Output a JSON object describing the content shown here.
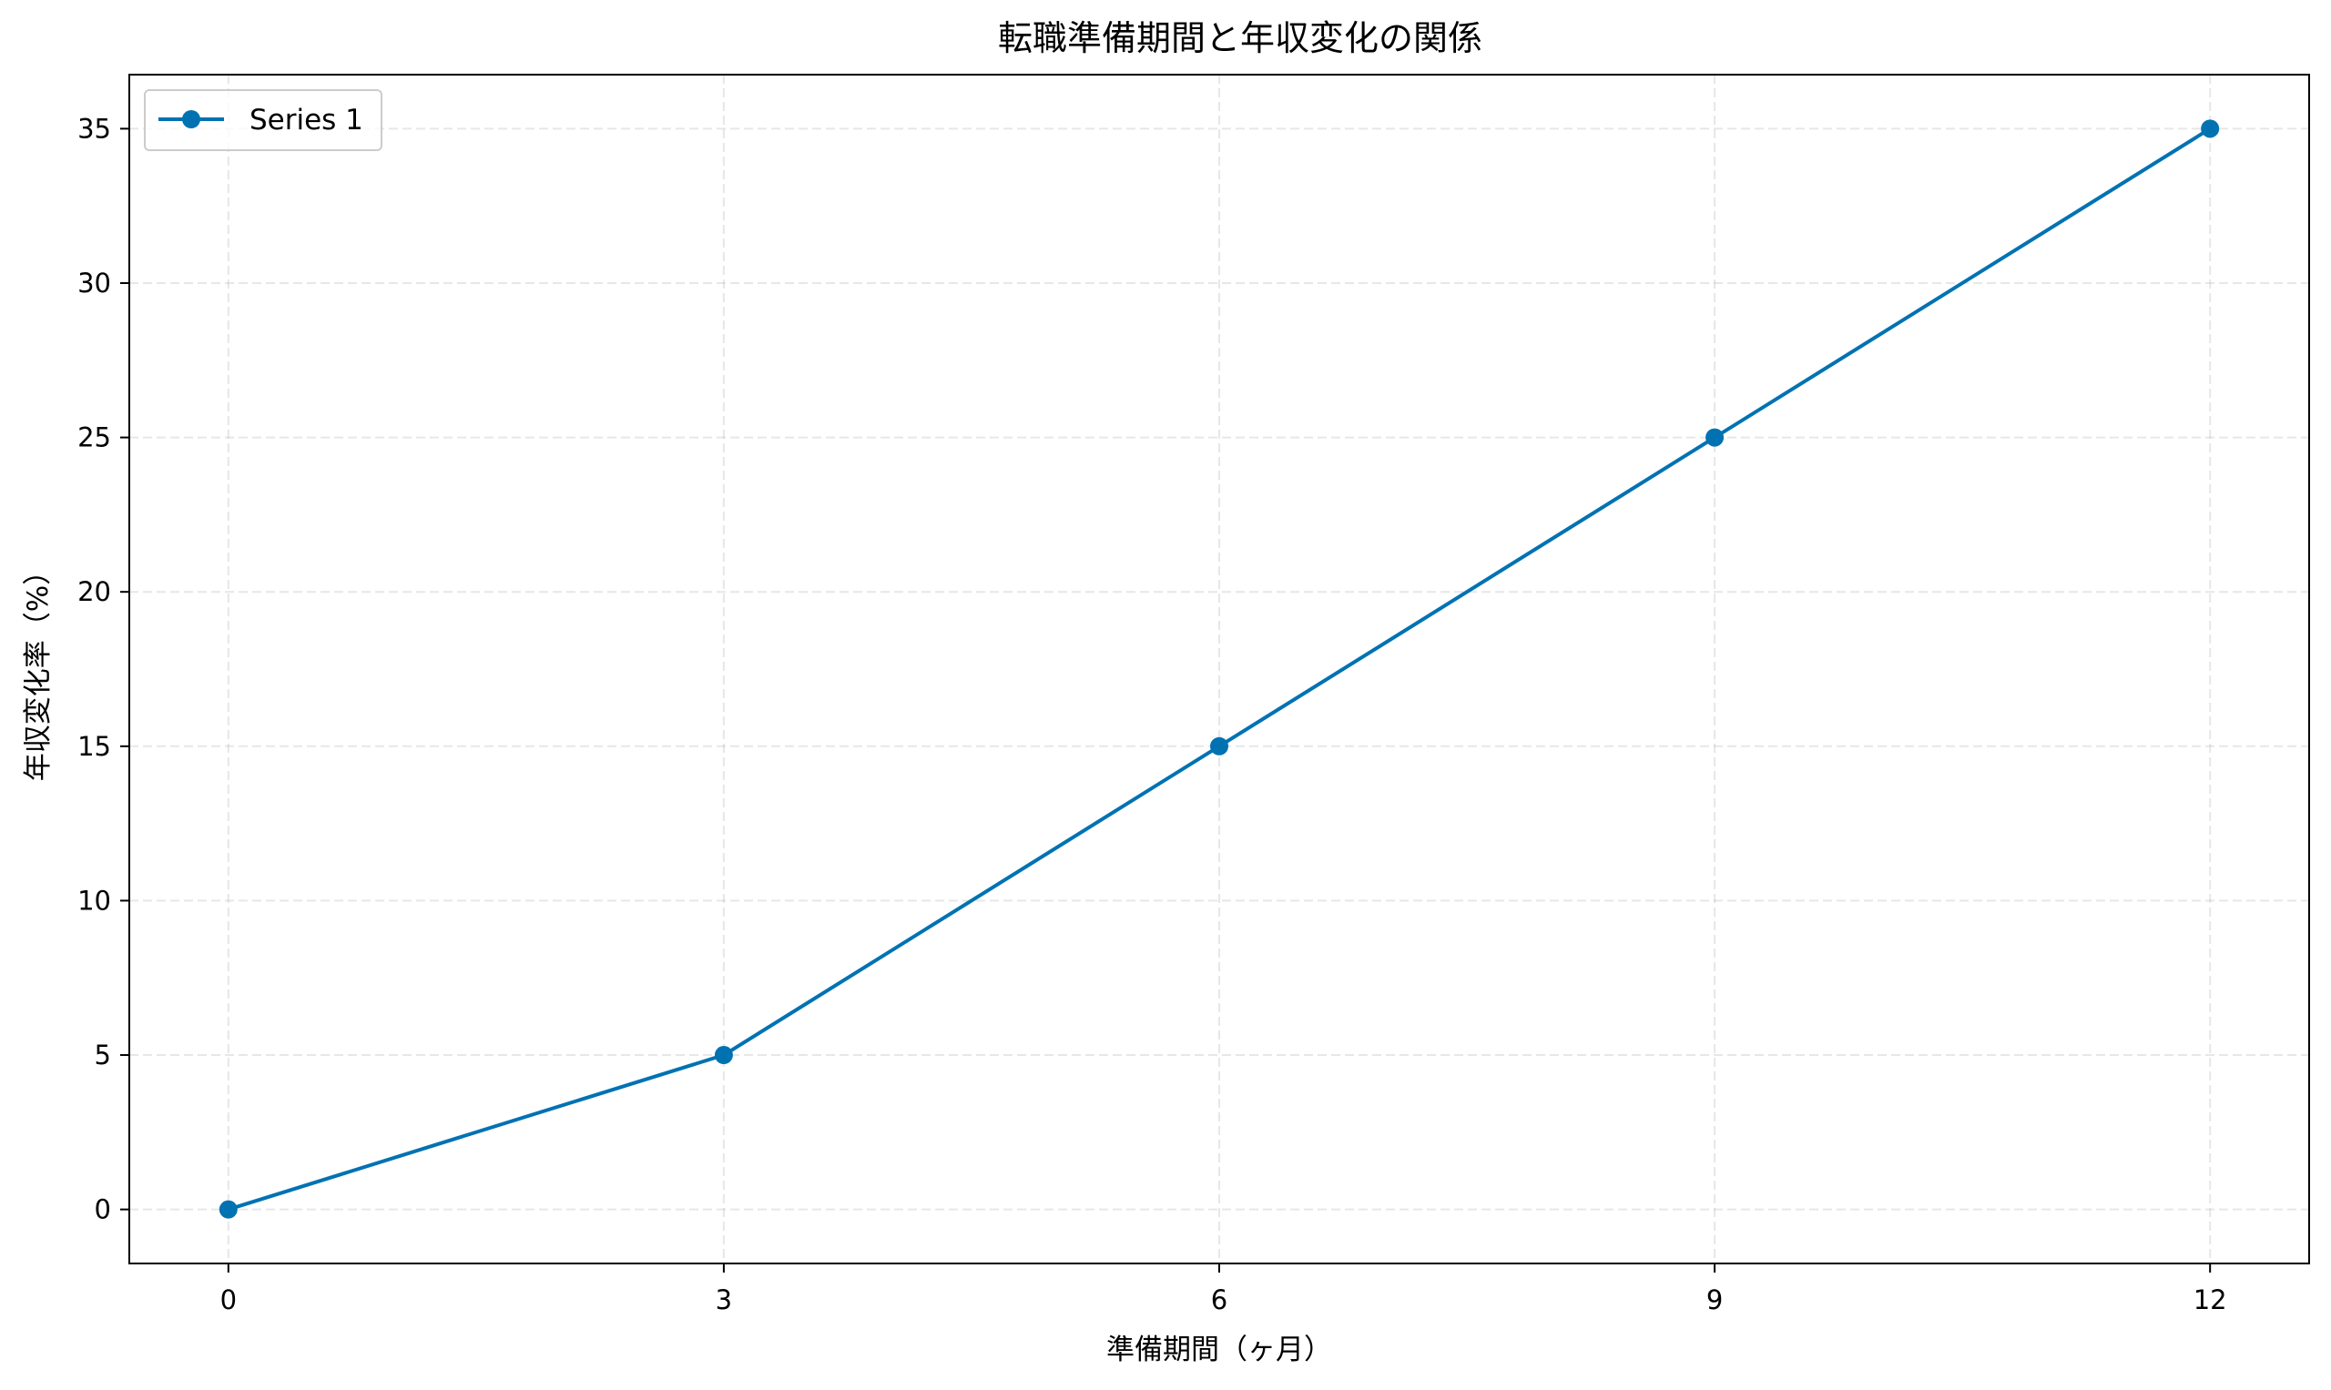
{
  "chart_data": {
    "type": "line",
    "title": "転職準備期間と年収変化の関係",
    "xlabel": "準備期間（ヶ月）",
    "ylabel": "年収変化率（%）",
    "x": [
      0,
      3,
      6,
      9,
      12
    ],
    "xticks": [
      "0",
      "3",
      "6",
      "9",
      "12"
    ],
    "yticks": [
      "0",
      "5",
      "10",
      "15",
      "20",
      "25",
      "30",
      "35"
    ],
    "xlim": [
      -0.6,
      12.6
    ],
    "ylim": [
      -1.75,
      36.75
    ],
    "grid": true,
    "legend_position": "top-left",
    "series": [
      {
        "name": "Series 1",
        "values": [
          0,
          5,
          15,
          25,
          35
        ],
        "color": "#0072b2",
        "marker": "circle"
      }
    ]
  }
}
